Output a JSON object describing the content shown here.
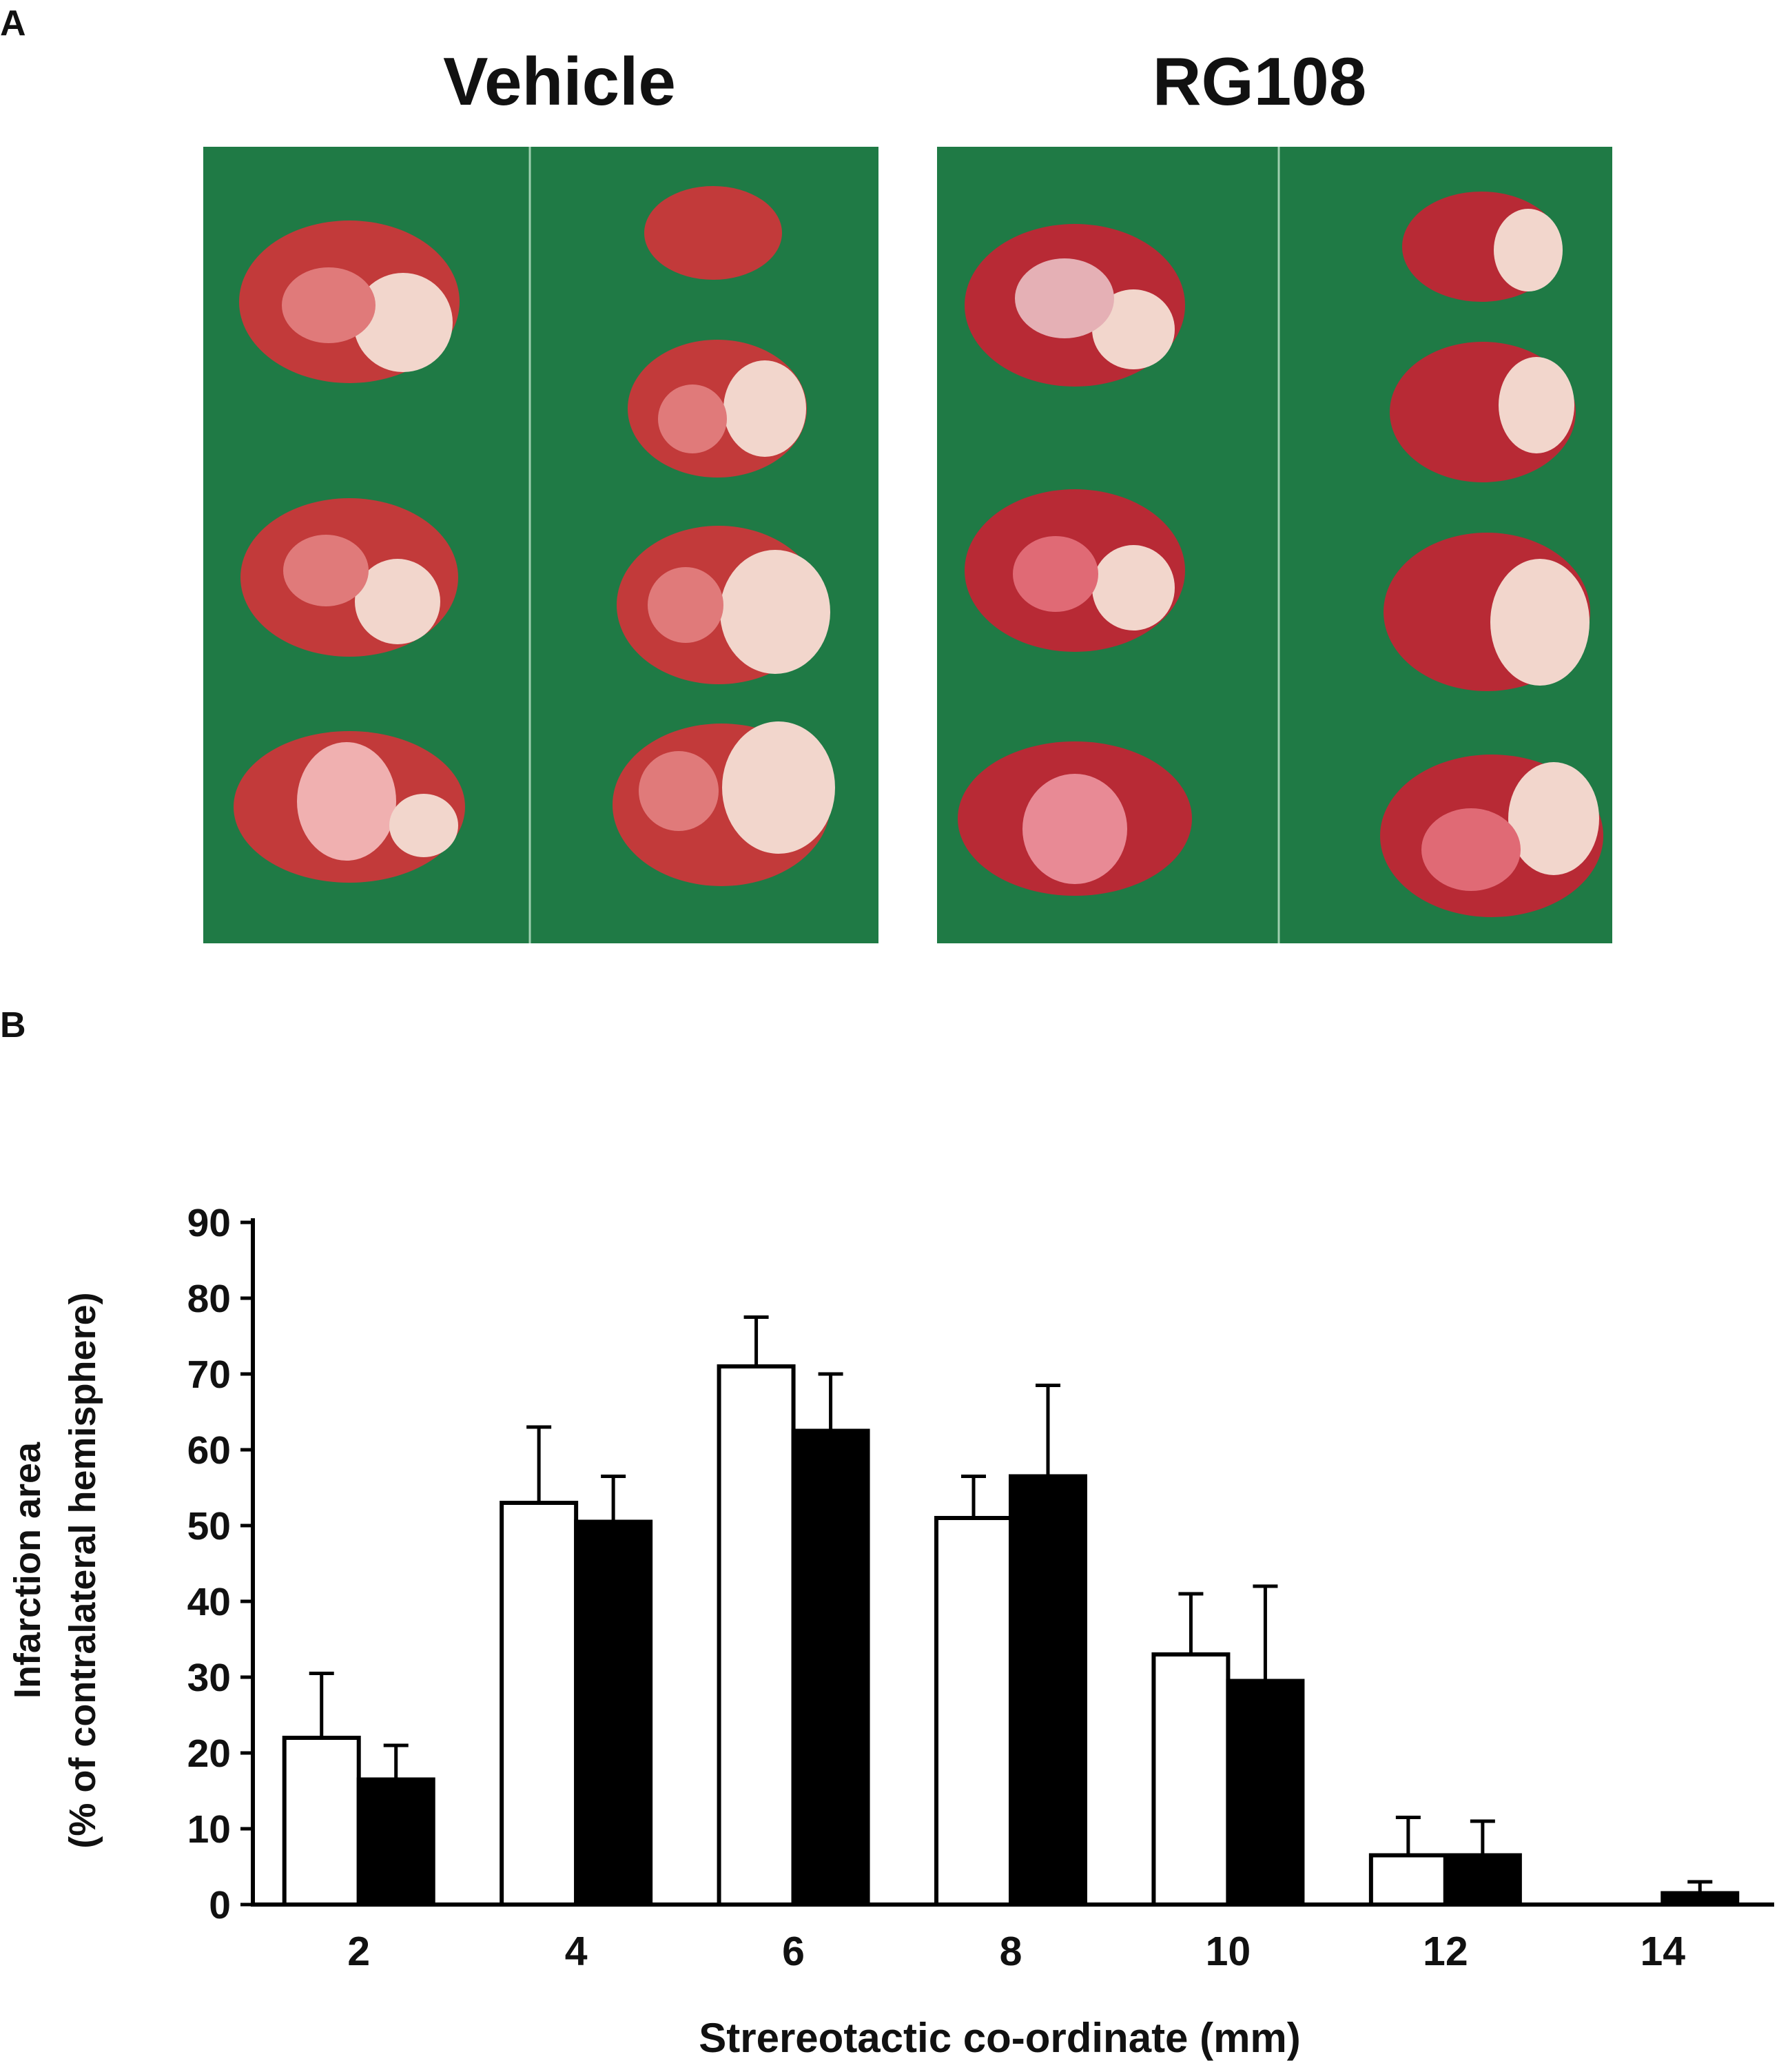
{
  "panel_a": {
    "label": "A",
    "left_title": "Vehicle",
    "right_title": "RG108",
    "photo_colors": {
      "background": "#1f7a45",
      "tissue": "#c23a3a",
      "infarct": "#f2d6cc"
    }
  },
  "panel_b": {
    "label": "B"
  },
  "chart_data": {
    "type": "bar",
    "xlabel": "Strereotactic  co-ordinate  (mm)",
    "ylabel_line1": "Infarction area",
    "ylabel_line2": "(% of contralateral hemisphere)",
    "ylim": [
      0,
      90
    ],
    "yticks": [
      0,
      10,
      20,
      30,
      40,
      50,
      60,
      70,
      80,
      90
    ],
    "categories": [
      "2",
      "4",
      "6",
      "8",
      "10",
      "12",
      "14"
    ],
    "series": [
      {
        "fill": "#ffffff",
        "values": [
          22,
          53,
          71,
          51,
          33,
          6.5,
          0
        ],
        "errors": [
          8.5,
          10,
          6.5,
          5.5,
          8,
          5,
          0
        ]
      },
      {
        "fill": "#000000",
        "values": [
          16.5,
          50.5,
          62.5,
          56.5,
          29.5,
          6.5,
          1.5
        ],
        "errors": [
          4.5,
          6,
          7.5,
          12,
          12.5,
          4.5,
          1.5
        ]
      }
    ],
    "grid": false,
    "legend": "none"
  }
}
